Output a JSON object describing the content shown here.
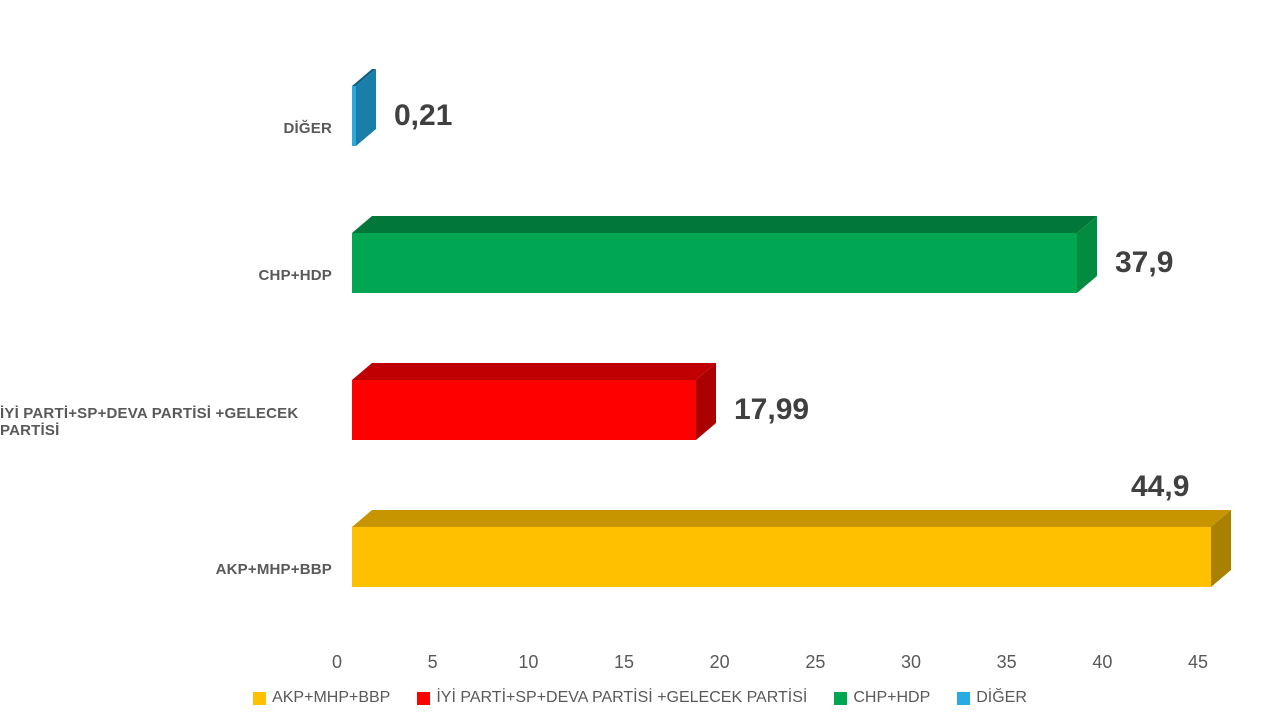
{
  "chart_data": {
    "type": "bar",
    "orientation": "horizontal",
    "style": "3d",
    "title": "",
    "xlabel": "",
    "ylabel": "",
    "xlim": [
      0,
      45
    ],
    "xticks": [
      0,
      5,
      10,
      15,
      20,
      25,
      30,
      35,
      40,
      45
    ],
    "grid": false,
    "bars": [
      {
        "label": "DİĞER",
        "value": 0.21,
        "value_label": "0,21",
        "value_label_position": "right",
        "face_color": "#2EA9DC",
        "top_color": "#11618A",
        "side_color": "#1A7FA8"
      },
      {
        "label": "CHP+HDP",
        "value": 37.9,
        "value_label": "37,9",
        "value_label_position": "right",
        "face_color": "#00A651",
        "top_color": "#02773A",
        "side_color": "#038B41"
      },
      {
        "label": "İYİ PARTİ+SP+DEVA PARTİSİ +GELECEK PARTİSİ",
        "value": 17.99,
        "value_label": "17,99",
        "value_label_position": "right",
        "face_color": "#FE0000",
        "top_color": "#C00000",
        "side_color": "#AB0000"
      },
      {
        "label": "AKP+MHP+BBP",
        "value": 44.9,
        "value_label": "44,9",
        "value_label_position": "above",
        "face_color": "#FFC000",
        "top_color": "#C69500",
        "side_color": "#AA8000"
      }
    ],
    "legend": {
      "position": "bottom",
      "items": [
        {
          "label": "AKP+MHP+BBP",
          "color": "#FFC000"
        },
        {
          "label": "İYİ PARTİ+SP+DEVA PARTİSİ +GELECEK PARTİSİ",
          "color": "#FF0000"
        },
        {
          "label": "CHP+HDP",
          "color": "#00A651"
        },
        {
          "label": "DİĞER",
          "color": "#29ABE2"
        }
      ]
    },
    "text_colors": {
      "value_label": "#404040",
      "category_label": "#595959",
      "tick_label": "#595959",
      "legend_label": "#595959"
    }
  }
}
